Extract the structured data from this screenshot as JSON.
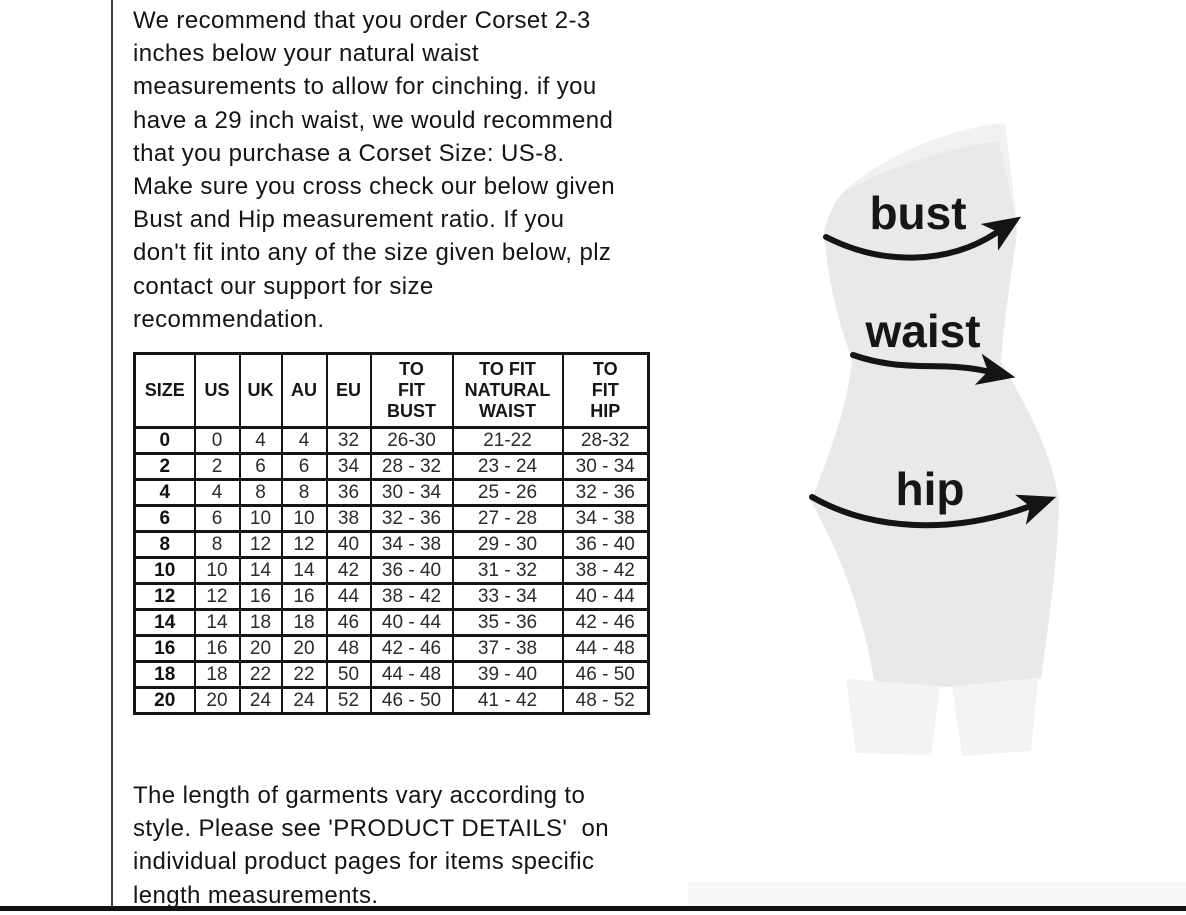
{
  "intro": {
    "text": "We recommend that you order Corset 2-3\ninches below your natural waist\nmeasurements to allow for cinching. if you\nhave a 29 inch waist, we would recommend\nthat you purchase a Corset Size: US-8.\nMake sure you cross check our below given\nBust and Hip measurement ratio. If you\ndon't fit into any of the size given below, plz\ncontact our support for size\nrecommendation."
  },
  "table": {
    "headers": [
      "SIZE",
      "US",
      "UK",
      "AU",
      "EU",
      "TO\nFIT\nBUST",
      "TO FIT\nNATURAL\nWAIST",
      "TO\nFIT\nHIP"
    ],
    "rows": [
      [
        "0",
        "0",
        "4",
        "4",
        "32",
        "26-30",
        "21-22",
        "28-32"
      ],
      [
        "2",
        "2",
        "6",
        "6",
        "34",
        "28 - 32",
        "23 - 24",
        "30 - 34"
      ],
      [
        "4",
        "4",
        "8",
        "8",
        "36",
        "30 - 34",
        "25 - 26",
        "32 - 36"
      ],
      [
        "6",
        "6",
        "10",
        "10",
        "38",
        "32 - 36",
        "27 - 28",
        "34 - 38"
      ],
      [
        "8",
        "8",
        "12",
        "12",
        "40",
        "34 - 38",
        "29 - 30",
        "36 - 40"
      ],
      [
        "10",
        "10",
        "14",
        "14",
        "42",
        "36 - 40",
        "31 - 32",
        "38 - 42"
      ],
      [
        "12",
        "12",
        "16",
        "16",
        "44",
        "38 - 42",
        "33 - 34",
        "40 - 44"
      ],
      [
        "14",
        "14",
        "18",
        "18",
        "46",
        "40 - 44",
        "35 - 36",
        "42 - 46"
      ],
      [
        "16",
        "16",
        "20",
        "20",
        "48",
        "42 - 46",
        "37 - 38",
        "44 - 48"
      ],
      [
        "18",
        "18",
        "22",
        "22",
        "50",
        "44 - 48",
        "39 - 40",
        "46 - 50"
      ],
      [
        "20",
        "20",
        "24",
        "24",
        "52",
        "46 - 50",
        "41 - 42",
        "48 - 52"
      ]
    ]
  },
  "figure": {
    "bust_label": "bust",
    "waist_label": "waist",
    "hip_label": "hip"
  },
  "outro": {
    "text": "The length of garments vary according to\nstyle. Please see 'PRODUCT DETAILS'  on\nindividual product pages for items specific\nlength measurements."
  },
  "colors": {
    "text": "#141414",
    "border_line": "#111111",
    "table_border": "#151515",
    "silhouette": "#e9e9e9",
    "silhouette_top_panel": "#f1f1f1",
    "legs": "#f3f3f3",
    "arrow": "#141414"
  }
}
